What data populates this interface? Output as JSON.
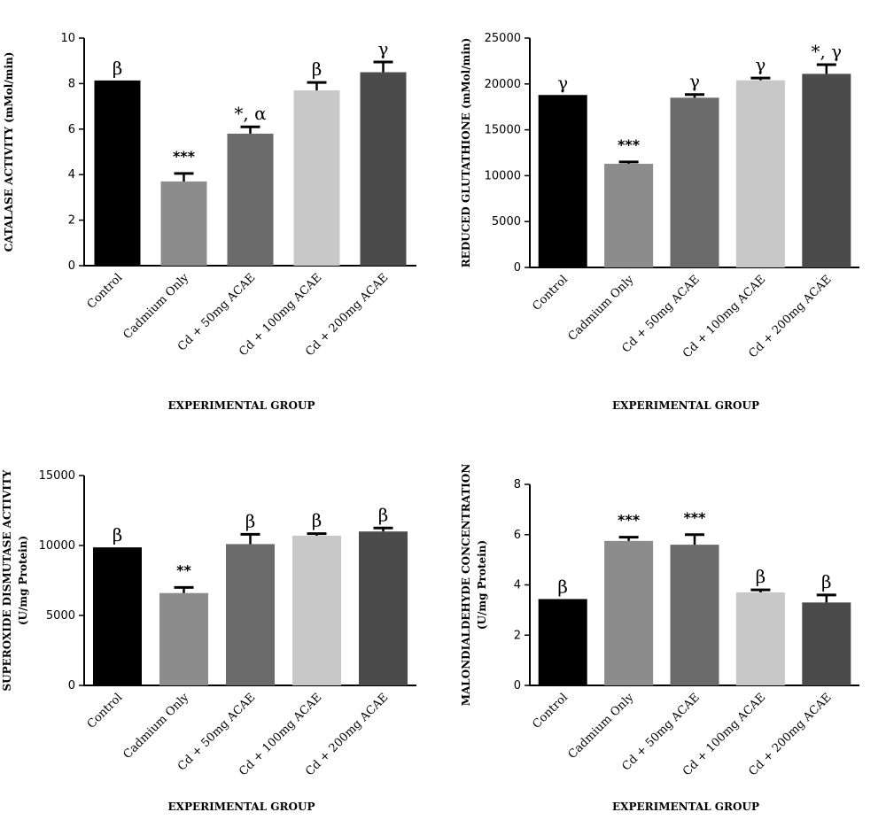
{
  "chart_data": [
    {
      "type": "bar",
      "categories": [
        "Control",
        "Cadmium Only",
        "Cd + 50mg ACAE",
        "Cd + 100mg ACAE",
        "Cd + 200mg ACAE"
      ],
      "values": [
        8.1,
        3.7,
        5.8,
        7.7,
        8.5
      ],
      "errors": [
        0.0,
        0.35,
        0.3,
        0.35,
        0.45
      ],
      "annotations": [
        "β",
        "***",
        "*, α",
        "β",
        "γ"
      ],
      "colors": [
        "#000000",
        "#8c8c8c",
        "#6b6b6b",
        "#c8c8c8",
        "#4b4b4b"
      ],
      "ylabel": "CATALASE ACTIVITY (mMol/min)",
      "xlabel": "EXPERIMENTAL GROUP",
      "ylim": [
        0,
        10
      ],
      "yticks": [
        0,
        2,
        4,
        6,
        8,
        10
      ]
    },
    {
      "type": "bar",
      "categories": [
        "Control",
        "Cadmium Only",
        "Cd + 50mg ACAE",
        "Cd + 100mg ACAE",
        "Cd + 200mg ACAE"
      ],
      "values": [
        18700,
        11300,
        18500,
        20400,
        21100
      ],
      "errors": [
        0,
        200,
        350,
        250,
        1000
      ],
      "annotations": [
        "γ",
        "***",
        "γ",
        "γ",
        "*, γ"
      ],
      "colors": [
        "#000000",
        "#8c8c8c",
        "#6b6b6b",
        "#c8c8c8",
        "#4b4b4b"
      ],
      "ylabel": "REDUCED GLUTATHIONE (mMol/min)",
      "xlabel": "EXPERIMENTAL GROUP",
      "ylim": [
        0,
        25000
      ],
      "yticks": [
        0,
        5000,
        10000,
        15000,
        20000,
        25000
      ]
    },
    {
      "type": "bar",
      "categories": [
        "Control",
        "Cadmium Only",
        "Cd + 50mg ACAE",
        "Cd + 100mg ACAE",
        "Cd + 200mg ACAE"
      ],
      "values": [
        9800,
        6600,
        10100,
        10700,
        11000
      ],
      "errors": [
        0,
        400,
        700,
        150,
        250
      ],
      "annotations": [
        "β",
        "**",
        "β",
        "β",
        "β"
      ],
      "colors": [
        "#000000",
        "#8c8c8c",
        "#6b6b6b",
        "#c8c8c8",
        "#4b4b4b"
      ],
      "ylabel": "SUPEROXIDE DISMUTASE ACTIVITY",
      "ylabel2": "(U/mg Protein)",
      "xlabel": "EXPERIMENTAL GROUP",
      "ylim": [
        0,
        15000
      ],
      "yticks": [
        0,
        5000,
        10000,
        15000
      ]
    },
    {
      "type": "bar",
      "categories": [
        "Control",
        "Cadmium Only",
        "Cd + 50mg ACAE",
        "Cd + 100mg ACAE",
        "Cd + 200mg ACAE"
      ],
      "values": [
        3.4,
        5.75,
        5.6,
        3.7,
        3.3
      ],
      "errors": [
        0.0,
        0.15,
        0.4,
        0.1,
        0.3
      ],
      "annotations": [
        "β",
        "***",
        "***",
        "β",
        "β"
      ],
      "colors": [
        "#000000",
        "#8c8c8c",
        "#6b6b6b",
        "#c8c8c8",
        "#4b4b4b"
      ],
      "ylabel": "MALONDIALDEHYDE CONCENTRATION",
      "ylabel2": "(U/mg Protein)",
      "xlabel": "EXPERIMENTAL GROUP",
      "ylim": [
        0,
        8
      ],
      "yticks": [
        0,
        2,
        4,
        6,
        8
      ]
    }
  ]
}
